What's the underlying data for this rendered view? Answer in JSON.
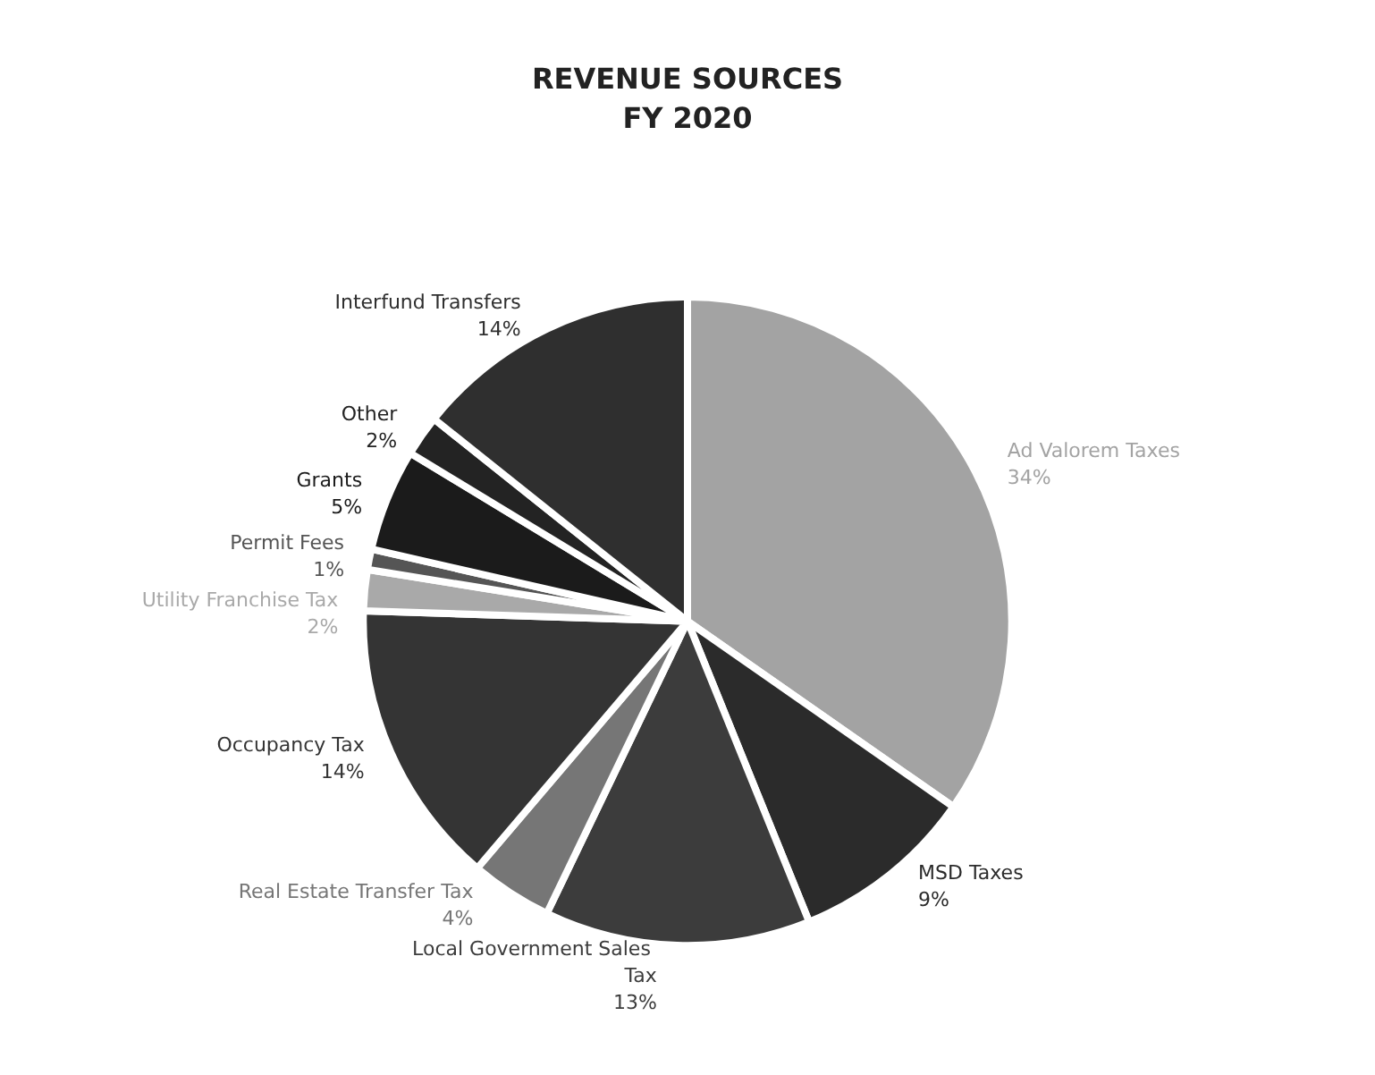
{
  "chart_data": {
    "type": "pie",
    "title": "REVENUE SOURCES\nFY 2020",
    "categories": [
      "Ad Valorem Taxes",
      "MSD Taxes",
      "Local Government Sales Tax",
      "Real Estate Transfer Tax",
      "Occupancy Tax",
      "Utility Franchise Tax",
      "Permit Fees",
      "Grants",
      "Other",
      "Interfund Transfers"
    ],
    "values": [
      34,
      9,
      13,
      4,
      14,
      2,
      1,
      5,
      2,
      14
    ],
    "value_labels": [
      "34%",
      "9%",
      "13%",
      "4%",
      "14%",
      "2%",
      "1%",
      "5%",
      "2%",
      "14%"
    ],
    "colors": [
      "#a3a3a3",
      "#2b2b2b",
      "#3c3c3c",
      "#767676",
      "#343434",
      "#a9a9a9",
      "#555555",
      "#1b1b1b",
      "#232323",
      "#2f2f2f"
    ],
    "legend": false
  }
}
